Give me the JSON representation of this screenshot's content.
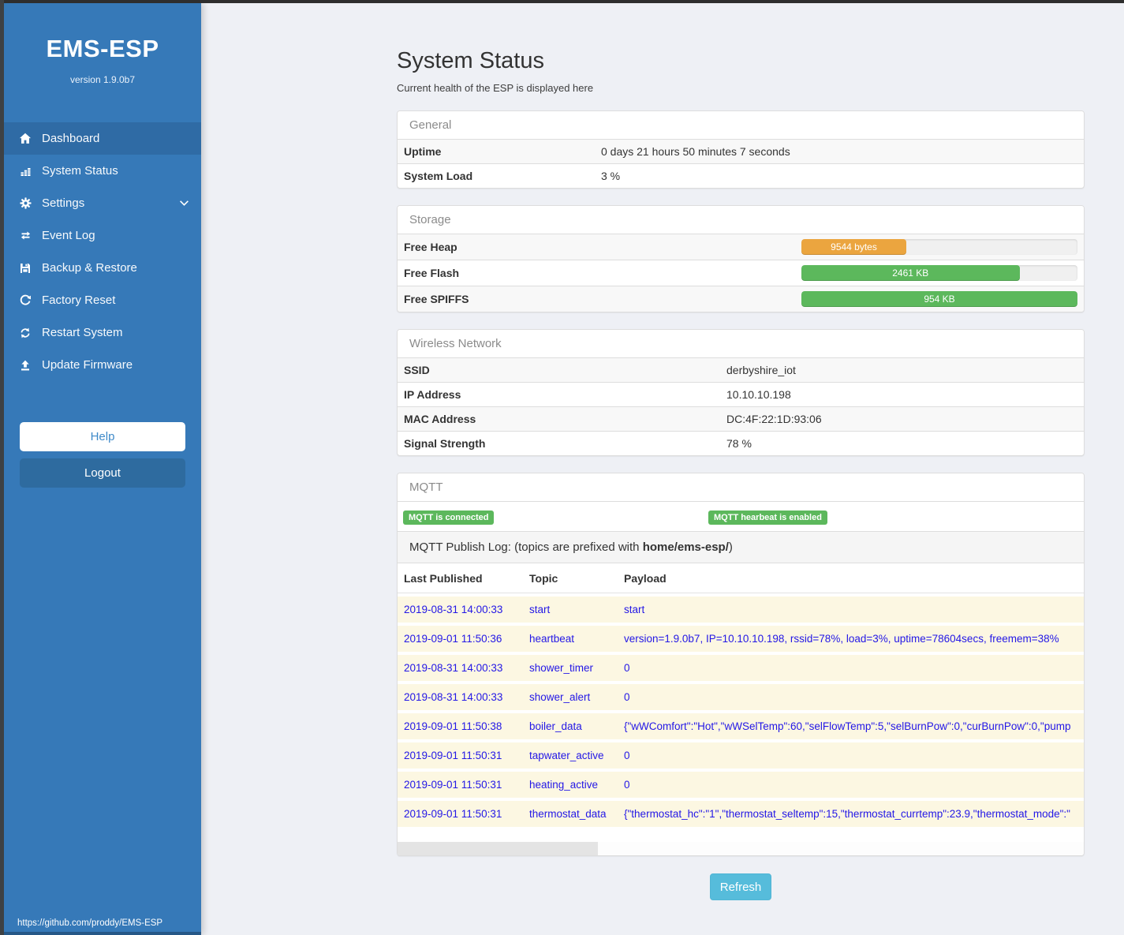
{
  "sidebar": {
    "title": "EMS-ESP",
    "version": "version 1.9.0b7",
    "items": [
      {
        "label": "Dashboard",
        "icon": "home-icon",
        "active": true
      },
      {
        "label": "System Status",
        "icon": "bar-chart-icon",
        "active": false
      },
      {
        "label": "Settings",
        "icon": "gear-icon",
        "active": false,
        "has_chevron": true
      },
      {
        "label": "Event Log",
        "icon": "exchange-icon",
        "active": false
      },
      {
        "label": "Backup & Restore",
        "icon": "save-icon",
        "active": false
      },
      {
        "label": "Factory Reset",
        "icon": "undo-icon",
        "active": false
      },
      {
        "label": "Restart System",
        "icon": "sync-icon",
        "active": false
      },
      {
        "label": "Update Firmware",
        "icon": "upload-icon",
        "active": false
      }
    ],
    "help_label": "Help",
    "logout_label": "Logout",
    "footer_link": "https://github.com/proddy/EMS-ESP"
  },
  "page": {
    "title": "System Status",
    "subtitle": "Current health of the ESP is displayed here"
  },
  "panels": {
    "general": {
      "title": "General",
      "rows": [
        {
          "label": "Uptime",
          "value": "0 days 21 hours 50 minutes 7 seconds"
        },
        {
          "label": "System Load",
          "value": "3 %"
        }
      ]
    },
    "storage": {
      "title": "Storage",
      "rows": [
        {
          "label": "Free Heap",
          "bar_label": "9544 bytes",
          "percent": 38,
          "color": "#eba53f"
        },
        {
          "label": "Free Flash",
          "bar_label": "2461 KB",
          "percent": 79,
          "color": "#5cb85c"
        },
        {
          "label": "Free SPIFFS",
          "bar_label": "954 KB",
          "percent": 100,
          "color": "#5cb85c"
        }
      ]
    },
    "wireless": {
      "title": "Wireless Network",
      "rows": [
        {
          "label": "SSID",
          "value": "derbyshire_iot"
        },
        {
          "label": "IP Address",
          "value": "10.10.10.198"
        },
        {
          "label": "MAC Address",
          "value": "DC:4F:22:1D:93:06"
        },
        {
          "label": "Signal Strength",
          "value": "78 %"
        }
      ]
    },
    "mqtt": {
      "title": "MQTT",
      "badges": [
        {
          "text": "MQTT is connected"
        },
        {
          "text": "MQTT hearbeat is enabled"
        }
      ],
      "log_title_prefix": "MQTT Publish Log: (topics are prefixed with ",
      "log_title_bold": "home/ems-esp/",
      "log_title_suffix": ")",
      "table": {
        "headers": [
          "Last Published",
          "Topic",
          "Payload"
        ],
        "rows": [
          {
            "time": "2019-08-31 14:00:33",
            "topic": "start",
            "payload": "start"
          },
          {
            "time": "2019-09-01 11:50:36",
            "topic": "heartbeat",
            "payload": "version=1.9.0b7, IP=10.10.10.198, rssid=78%, load=3%, uptime=78604secs, freemem=38%"
          },
          {
            "time": "2019-08-31 14:00:33",
            "topic": "shower_timer",
            "payload": "0"
          },
          {
            "time": "2019-08-31 14:00:33",
            "topic": "shower_alert",
            "payload": "0"
          },
          {
            "time": "2019-09-01 11:50:38",
            "topic": "boiler_data",
            "payload": "{\"wWComfort\":\"Hot\",\"wWSelTemp\":60,\"selFlowTemp\":5,\"selBurnPow\":0,\"curBurnPow\":0,\"pump"
          },
          {
            "time": "2019-09-01 11:50:31",
            "topic": "tapwater_active",
            "payload": "0"
          },
          {
            "time": "2019-09-01 11:50:31",
            "topic": "heating_active",
            "payload": "0"
          },
          {
            "time": "2019-09-01 11:50:31",
            "topic": "thermostat_data",
            "payload": "{\"thermostat_hc\":\"1\",\"thermostat_seltemp\":15,\"thermostat_currtemp\":23.9,\"thermostat_mode\":\""
          }
        ]
      }
    }
  },
  "refresh_label": "Refresh",
  "colors": {
    "sidebar_blue": "#3679b8",
    "active_blue": "#2f6ba5",
    "success_green": "#5cb85c",
    "warning_orange": "#eba53f",
    "info_blue": "#56bcdb",
    "log_text_blue": "#2317e6",
    "log_row_cream": "#fcf7e2"
  }
}
